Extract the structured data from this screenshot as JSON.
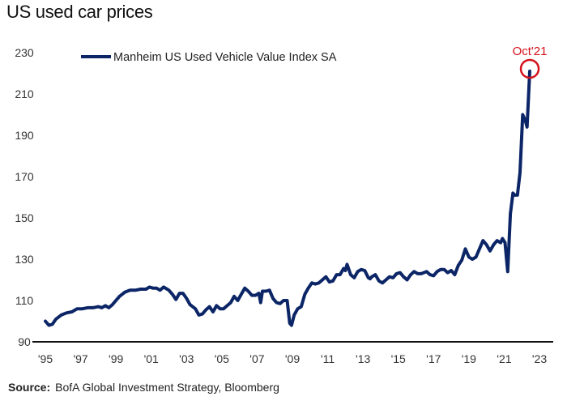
{
  "title": "US used car prices",
  "source": {
    "label": "Source:",
    "text": "BofA Global Investment Strategy, Bloomberg"
  },
  "chart_data": {
    "type": "line",
    "title": "US used car prices",
    "xlabel": "",
    "ylabel": "",
    "ylim": [
      90,
      230
    ],
    "xlim": [
      1995,
      2023.4
    ],
    "yticks": [
      90,
      110,
      130,
      150,
      170,
      190,
      210,
      230
    ],
    "xticks": [
      {
        "value": 1995,
        "label": "'95"
      },
      {
        "value": 1997,
        "label": "'97"
      },
      {
        "value": 1999,
        "label": "'99"
      },
      {
        "value": 2001,
        "label": "'01"
      },
      {
        "value": 2003,
        "label": "'03"
      },
      {
        "value": 2005,
        "label": "'05"
      },
      {
        "value": 2007,
        "label": "'07"
      },
      {
        "value": 2009,
        "label": "'09"
      },
      {
        "value": 2011,
        "label": "'11"
      },
      {
        "value": 2013,
        "label": "'13"
      },
      {
        "value": 2015,
        "label": "'15"
      },
      {
        "value": 2017,
        "label": "'17"
      },
      {
        "value": 2019,
        "label": "'19"
      },
      {
        "value": 2021,
        "label": "'21"
      },
      {
        "value": 2023,
        "label": "'23"
      }
    ],
    "grid": false,
    "legend": {
      "position": "top-left",
      "entries": [
        "Manheim US Used Vehicle Value Index SA"
      ]
    },
    "series": [
      {
        "name": "Manheim US Used Vehicle Value Index SA",
        "color": "#0b2566",
        "points": [
          [
            1995.0,
            100
          ],
          [
            1995.2,
            98
          ],
          [
            1995.4,
            98.5
          ],
          [
            1995.6,
            101
          ],
          [
            1995.9,
            103
          ],
          [
            1996.2,
            104
          ],
          [
            1996.5,
            104.5
          ],
          [
            1996.8,
            106
          ],
          [
            1997.1,
            106
          ],
          [
            1997.4,
            106.5
          ],
          [
            1997.7,
            106.5
          ],
          [
            1998.0,
            107
          ],
          [
            1998.2,
            106.5
          ],
          [
            1998.4,
            107.5
          ],
          [
            1998.6,
            106.5
          ],
          [
            1998.8,
            108
          ],
          [
            1999.0,
            110
          ],
          [
            1999.2,
            112
          ],
          [
            1999.5,
            114
          ],
          [
            1999.8,
            115
          ],
          [
            2000.1,
            115
          ],
          [
            2000.4,
            115.5
          ],
          [
            2000.7,
            115.5
          ],
          [
            2000.9,
            116.5
          ],
          [
            2001.1,
            116
          ],
          [
            2001.3,
            116
          ],
          [
            2001.5,
            115
          ],
          [
            2001.7,
            116.5
          ],
          [
            2002.0,
            115
          ],
          [
            2002.2,
            113
          ],
          [
            2002.4,
            110.5
          ],
          [
            2002.6,
            113.5
          ],
          [
            2002.8,
            113.5
          ],
          [
            2003.0,
            111
          ],
          [
            2003.2,
            108
          ],
          [
            2003.5,
            106
          ],
          [
            2003.7,
            103
          ],
          [
            2003.9,
            103.5
          ],
          [
            2004.1,
            105.5
          ],
          [
            2004.3,
            107
          ],
          [
            2004.5,
            104.5
          ],
          [
            2004.7,
            107.5
          ],
          [
            2004.9,
            106
          ],
          [
            2005.1,
            106
          ],
          [
            2005.3,
            107.5
          ],
          [
            2005.5,
            109
          ],
          [
            2005.7,
            112
          ],
          [
            2005.9,
            110
          ],
          [
            2006.1,
            113
          ],
          [
            2006.3,
            116
          ],
          [
            2006.5,
            114.5
          ],
          [
            2006.7,
            112.5
          ],
          [
            2006.9,
            112.5
          ],
          [
            2007.1,
            113.5
          ],
          [
            2007.2,
            109
          ],
          [
            2007.3,
            114.5
          ],
          [
            2007.5,
            114.5
          ],
          [
            2007.7,
            115
          ],
          [
            2007.9,
            111
          ],
          [
            2008.1,
            109
          ],
          [
            2008.3,
            108.5
          ],
          [
            2008.5,
            110
          ],
          [
            2008.7,
            110
          ],
          [
            2008.85,
            99
          ],
          [
            2008.95,
            98
          ],
          [
            2009.1,
            103
          ],
          [
            2009.3,
            106
          ],
          [
            2009.5,
            107
          ],
          [
            2009.7,
            113
          ],
          [
            2009.9,
            116
          ],
          [
            2010.1,
            118.5
          ],
          [
            2010.3,
            118
          ],
          [
            2010.5,
            118.5
          ],
          [
            2010.7,
            120
          ],
          [
            2010.9,
            121.5
          ],
          [
            2011.1,
            119
          ],
          [
            2011.3,
            119.5
          ],
          [
            2011.5,
            122.5
          ],
          [
            2011.7,
            122.5
          ],
          [
            2011.9,
            125.5
          ],
          [
            2012.0,
            124.5
          ],
          [
            2012.1,
            127.5
          ],
          [
            2012.3,
            122.5
          ],
          [
            2012.5,
            121
          ],
          [
            2012.7,
            124
          ],
          [
            2012.9,
            125
          ],
          [
            2013.1,
            124.5
          ],
          [
            2013.3,
            121
          ],
          [
            2013.4,
            120.5
          ],
          [
            2013.5,
            121.5
          ],
          [
            2013.7,
            122.5
          ],
          [
            2013.9,
            119.5
          ],
          [
            2014.1,
            118.5
          ],
          [
            2014.3,
            120
          ],
          [
            2014.5,
            121.5
          ],
          [
            2014.7,
            121
          ],
          [
            2014.9,
            123
          ],
          [
            2015.1,
            123.5
          ],
          [
            2015.3,
            121.5
          ],
          [
            2015.5,
            120
          ],
          [
            2015.7,
            122.5
          ],
          [
            2015.9,
            124
          ],
          [
            2016.1,
            123
          ],
          [
            2016.3,
            123
          ],
          [
            2016.6,
            124
          ],
          [
            2016.8,
            122.5
          ],
          [
            2017.0,
            122
          ],
          [
            2017.2,
            124
          ],
          [
            2017.4,
            125
          ],
          [
            2017.6,
            125
          ],
          [
            2017.8,
            123.5
          ],
          [
            2018.0,
            124.5
          ],
          [
            2018.2,
            122.5
          ],
          [
            2018.4,
            127
          ],
          [
            2018.6,
            129.5
          ],
          [
            2018.8,
            135
          ],
          [
            2019.0,
            131
          ],
          [
            2019.2,
            130
          ],
          [
            2019.4,
            131
          ],
          [
            2019.6,
            135
          ],
          [
            2019.8,
            139
          ],
          [
            2020.0,
            137
          ],
          [
            2020.2,
            134
          ],
          [
            2020.4,
            137
          ],
          [
            2020.6,
            139
          ],
          [
            2020.8,
            138
          ],
          [
            2020.9,
            140
          ],
          [
            2021.05,
            138
          ],
          [
            2021.2,
            124
          ],
          [
            2021.35,
            152
          ],
          [
            2021.5,
            162
          ],
          [
            2021.6,
            161
          ],
          [
            2021.75,
            161
          ],
          [
            2021.9,
            172
          ],
          [
            2022.05,
            200
          ],
          [
            2022.2,
            197
          ],
          [
            2022.3,
            194
          ],
          [
            2022.45,
            221
          ]
        ]
      }
    ],
    "annotations": [
      {
        "text": "Oct'21",
        "color": "#d6131c",
        "target": [
          2022.45,
          221
        ]
      }
    ]
  }
}
